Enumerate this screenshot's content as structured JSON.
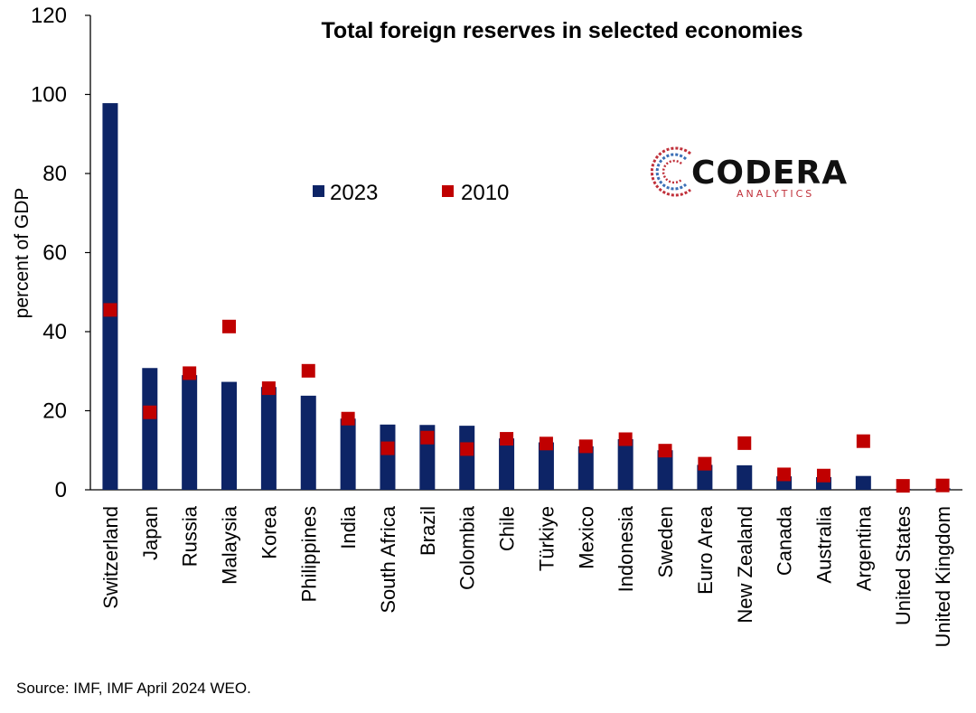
{
  "chart_data": {
    "type": "bar",
    "title": "Total foreign reserves in selected economies",
    "ylabel": "percent of GDP",
    "xlabel": "",
    "ylim": [
      0,
      120
    ],
    "yticks": [
      0,
      20,
      40,
      60,
      80,
      100,
      120
    ],
    "categories": [
      "Switzerland",
      "Japan",
      "Russia",
      "Malaysia",
      "Korea",
      "Philippines",
      "India",
      "South Africa",
      "Brazil",
      "Colombia",
      "Chile",
      "Türkiye",
      "Mexico",
      "Indonesia",
      "Sweden",
      "Euro Area",
      "New Zealand",
      "Canada",
      "Australia",
      "Argentina",
      "United States",
      "United Kingdom"
    ],
    "series": [
      {
        "name": "2023",
        "type": "bar",
        "color": "#0d2466",
        "values": [
          97.8,
          30.8,
          29.0,
          27.3,
          26.0,
          23.8,
          18.0,
          16.5,
          16.4,
          16.2,
          13.0,
          12.0,
          11.0,
          12.8,
          10.0,
          6.3,
          6.2,
          3.4,
          3.2,
          3.5,
          0.2,
          0.4
        ]
      },
      {
        "name": "2010",
        "type": "marker",
        "color": "#c00000",
        "values": [
          45.5,
          19.6,
          29.5,
          41.3,
          25.7,
          30.1,
          18.0,
          10.5,
          13.2,
          10.3,
          12.9,
          11.7,
          11.0,
          12.8,
          9.9,
          6.6,
          11.8,
          3.9,
          3.6,
          12.3,
          1.0,
          1.1
        ]
      }
    ],
    "legend": {
      "position": "center-left"
    },
    "grid": false
  },
  "logo": {
    "word": "CODERA",
    "sub": "ANALYTICS"
  },
  "source": "Source: IMF, IMF April 2024 WEO."
}
